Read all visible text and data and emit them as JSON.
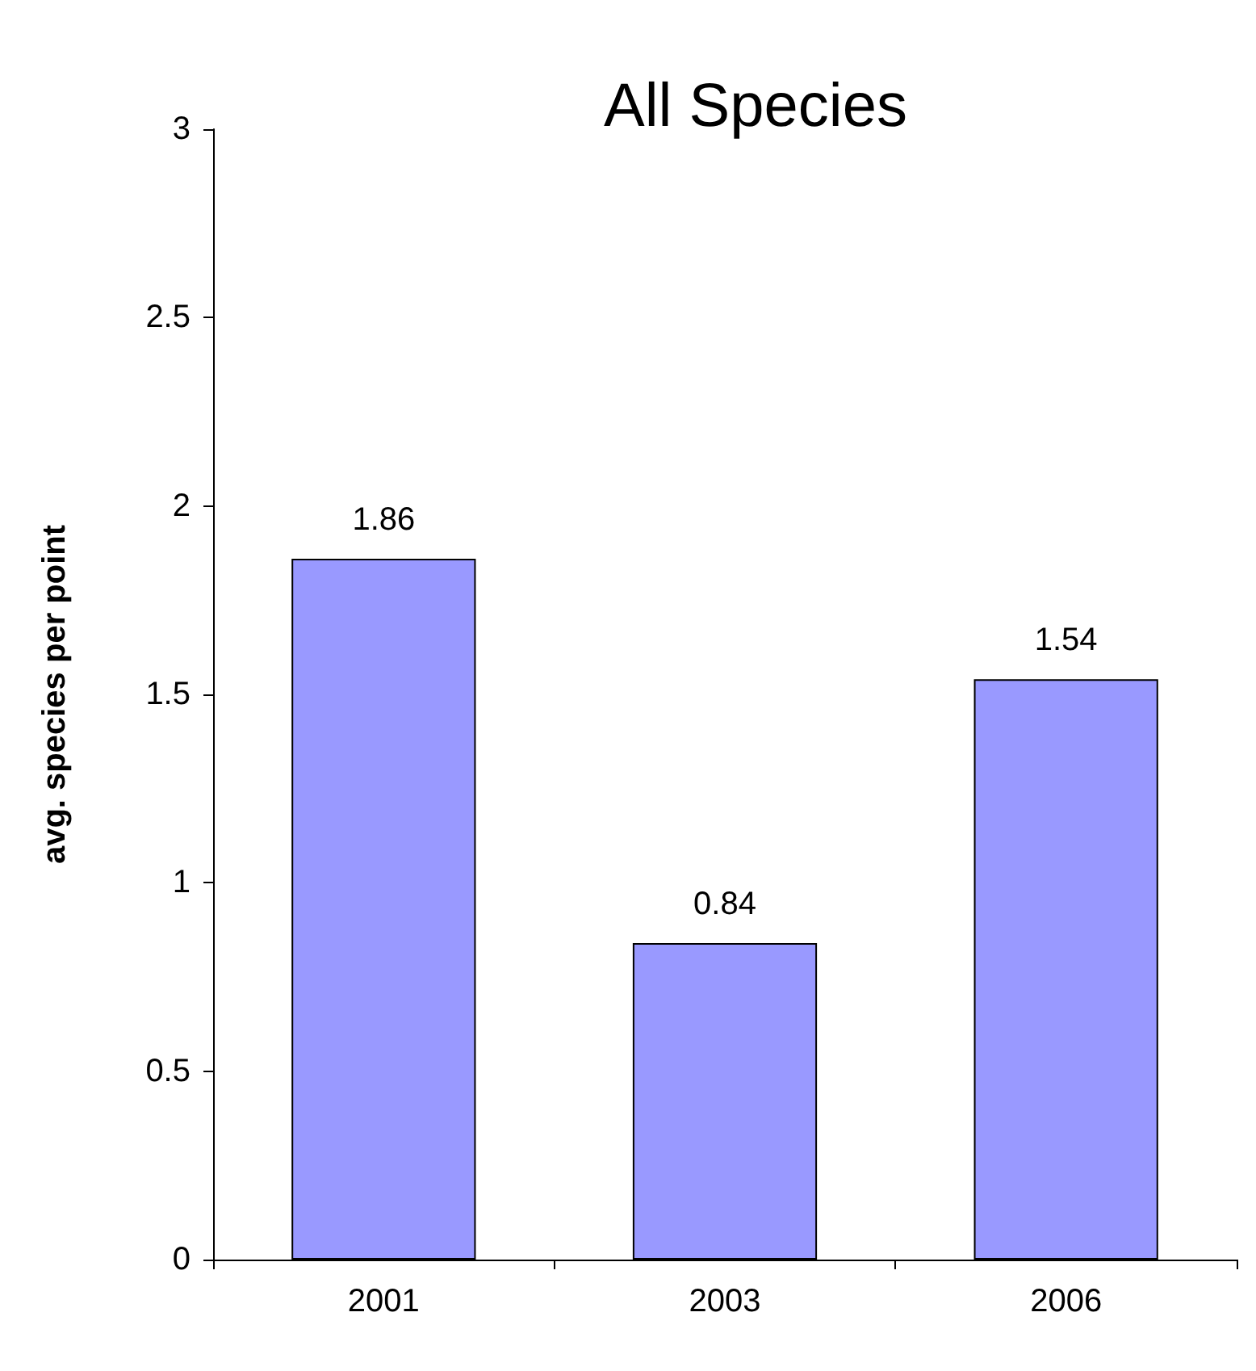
{
  "chart_data": {
    "type": "bar",
    "title": "All Species",
    "ylabel": "avg. species per point",
    "categories": [
      "2001",
      "2003",
      "2006"
    ],
    "values": [
      1.86,
      0.84,
      1.54
    ],
    "color": "#9999ff",
    "ylim": [
      0,
      3
    ],
    "yticks": [
      0,
      0.5,
      1,
      1.5,
      2,
      2.5,
      3
    ],
    "grid": false,
    "data_labels": true
  }
}
